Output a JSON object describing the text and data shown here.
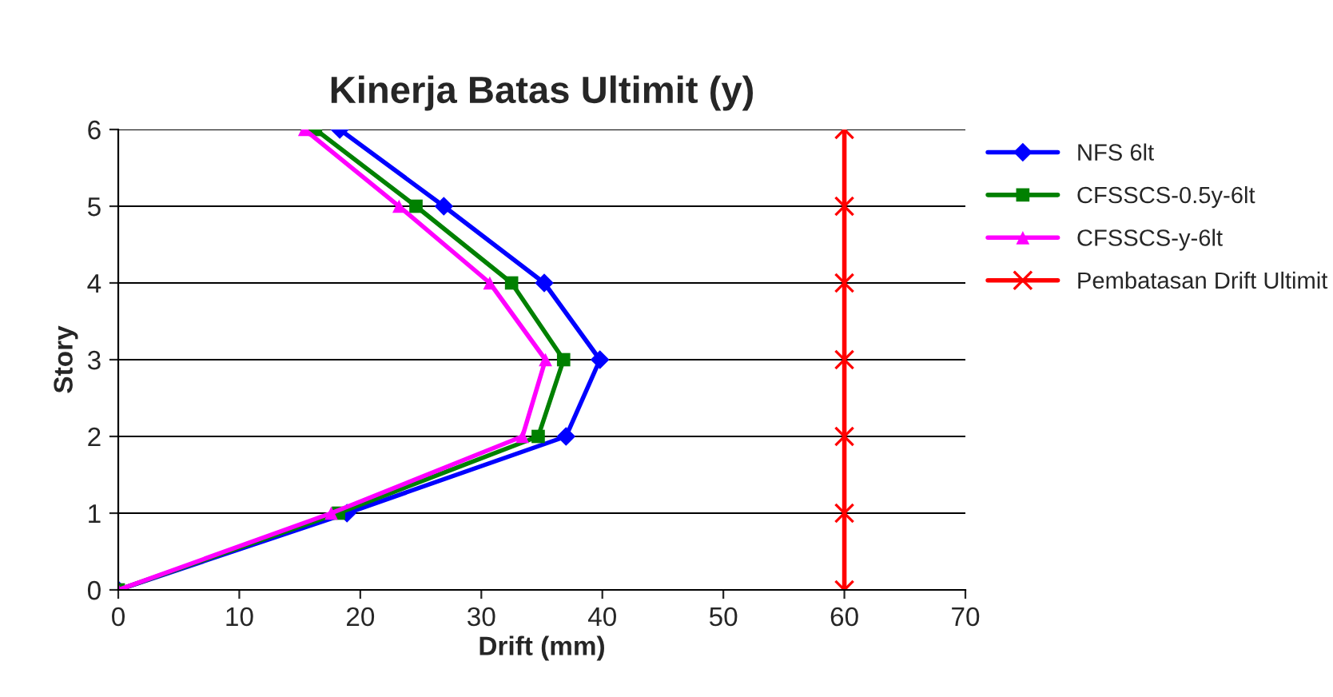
{
  "chart_data": {
    "type": "line",
    "title": "Kinerja Batas Ultimit (y)",
    "xlabel": "Drift (mm)",
    "ylabel": "Story",
    "xlim": [
      0,
      70
    ],
    "xticks": [
      0,
      10,
      20,
      30,
      40,
      50,
      60,
      70
    ],
    "ylim": [
      0,
      6
    ],
    "yticks": [
      0,
      1,
      2,
      3,
      4,
      5,
      6
    ],
    "grid": "y",
    "legend": "top right",
    "series": [
      {
        "name": "NFS 6lt",
        "color": "#0000ff",
        "marker": "diamond",
        "x": [
          0,
          18.9,
          37.0,
          39.8,
          35.2,
          26.9,
          18.3
        ],
        "values": [
          0,
          1,
          2,
          3,
          4,
          5,
          6
        ]
      },
      {
        "name": "CFSSCS-0.5y-6lt",
        "color": "#008000",
        "marker": "square",
        "x": [
          0,
          18.2,
          34.7,
          36.8,
          32.5,
          24.6,
          16.3
        ],
        "values": [
          0,
          1,
          2,
          3,
          4,
          5,
          6
        ]
      },
      {
        "name": "CFSSCS-y-6lt",
        "color": "#ff00ff",
        "marker": "triangle",
        "x": [
          0,
          17.6,
          33.4,
          35.3,
          30.7,
          23.2,
          15.4
        ],
        "values": [
          0,
          1,
          2,
          3,
          4,
          5,
          6
        ]
      },
      {
        "name": "Pembatasan Drift Ultimit",
        "color": "#ff0000",
        "marker": "cross",
        "x": [
          60,
          60,
          60,
          60,
          60,
          60,
          60
        ],
        "values": [
          0,
          1,
          2,
          3,
          4,
          5,
          6
        ]
      }
    ]
  }
}
